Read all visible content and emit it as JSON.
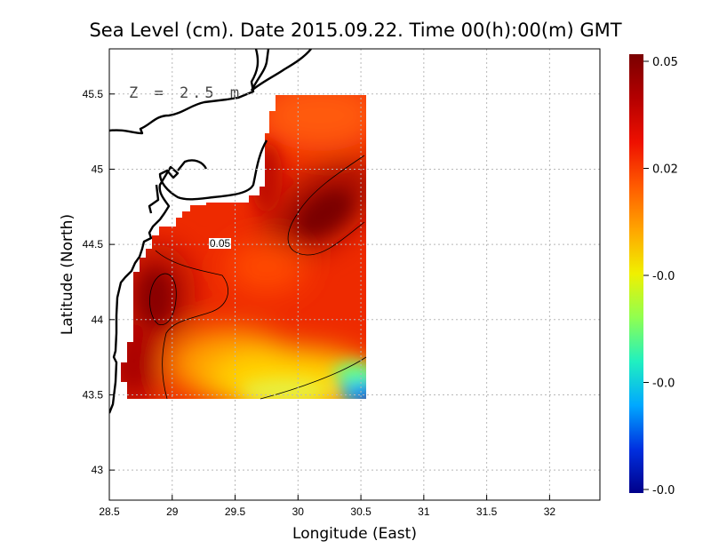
{
  "chart_data": {
    "type": "heatmap",
    "title": "Sea Level (cm). Date 2015.09.22. Time 00(h):00(m) GMT",
    "annotation": "Z = 2.5 m",
    "contour_label": "0.05",
    "xlabel": "Longitude (East)",
    "ylabel": "Latitude (North)",
    "xlim": [
      28.5,
      32.4
    ],
    "ylim": [
      42.8,
      45.8
    ],
    "x_ticks": [
      "28.5",
      "29",
      "29.5",
      "30",
      "30.5",
      "31",
      "31.5",
      "32"
    ],
    "y_ticks": [
      "43",
      "43.5",
      "44",
      "44.5",
      "45",
      "45.5"
    ],
    "grid": true,
    "colorbar": {
      "position": "right",
      "tick_labels": [
        "0.05",
        "0.02",
        "-0.0",
        "-0.0",
        "-0.0"
      ],
      "colors": [
        "#7a0000",
        "#d40000",
        "#ff3000",
        "#ff8000",
        "#ffd000",
        "#c8ff20",
        "#40ff90",
        "#00e0ff",
        "#0070ff",
        "#0000c0",
        "#00008a"
      ]
    }
  }
}
